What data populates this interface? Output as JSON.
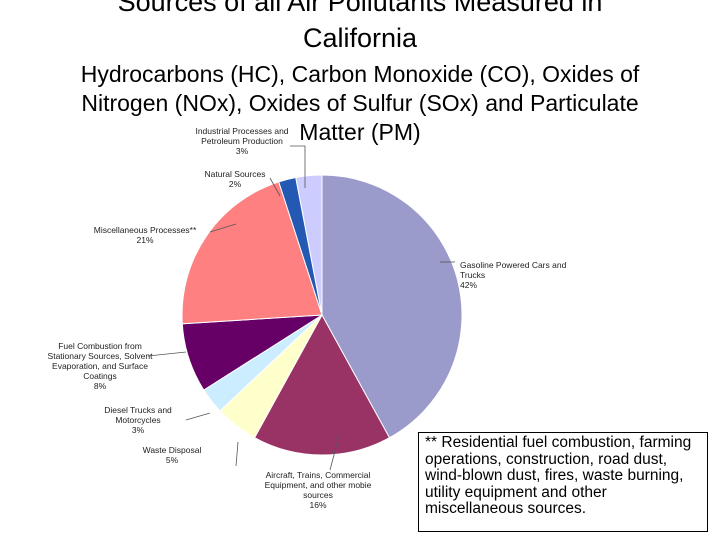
{
  "title": [
    "Sources of all Air Pollutants Measured in",
    "California"
  ],
  "subtitle": [
    "Hydrocarbons (HC), Carbon Monoxide (CO), Oxides of",
    "Nitrogen (NOx), Oxides of Sulfur (SOx) and Particulate",
    "Matter (PM)"
  ],
  "chart_data": {
    "type": "pie",
    "slices": [
      {
        "label": [
          "Gasoline Powered Cars and",
          "Trucks",
          "42%"
        ],
        "value": 42,
        "color": "#9a9acb"
      },
      {
        "label": [
          "Aircraft, Trains, Commercial",
          "Equipment, and other mobie",
          "sources",
          "16%"
        ],
        "value": 16,
        "color": "#993366"
      },
      {
        "label": [
          "Waste Disposal",
          "5%"
        ],
        "value": 5,
        "color": "#ffffcc"
      },
      {
        "label": [
          "Diesel Trucks and",
          "Motorcycles",
          "3%"
        ],
        "value": 3,
        "color": "#ccecff"
      },
      {
        "label": [
          "Fuel Combustion from",
          "Stationary Sources, Solvent",
          "Evaporation, and Surface",
          "Coatings",
          "8%"
        ],
        "value": 8,
        "color": "#660066"
      },
      {
        "label": [
          "Miscellaneous Processes**",
          "21%"
        ],
        "value": 21,
        "color": "#ff8080"
      },
      {
        "label": [
          "Natural Sources",
          "2%"
        ],
        "value": 2,
        "color": "#2459b3"
      },
      {
        "label": [
          "Industrial Processes and",
          "Petroleum Production",
          "3%"
        ],
        "value": 3,
        "color": "#ccccff"
      }
    ]
  },
  "note": "** Residential fuel combustion, farming operations, construction, road dust, wind-blown dust, fires, waste burning, utility equipment and other miscellaneous sources."
}
